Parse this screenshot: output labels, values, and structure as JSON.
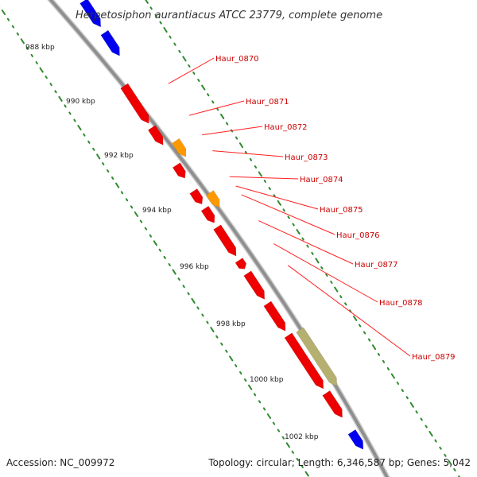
{
  "title": "Herpetosiphon aurantiacus ATCC 23779, complete genome",
  "accession_text": "Accession: NC_009972",
  "summary_text": "Topology: circular; Length: 6,346,587 bp; Genes: 5,042",
  "colors": {
    "background": "#ffffff",
    "backbone": "#8f8f8f",
    "tick": "#2e8b2e",
    "label_text": "#cc0000",
    "leader_line": "#ff2020",
    "cds": "#ee0000",
    "highlight_orange": "#ff9900",
    "highlight_khaki": "#b5b070",
    "neighbor_blue": "#0000ee"
  },
  "kbp_ticks": [
    {
      "label": "988 kbp",
      "pos": 988
    },
    {
      "label": "990 kbp",
      "pos": 990
    },
    {
      "label": "992 kbp",
      "pos": 992
    },
    {
      "label": "994 kbp",
      "pos": 994
    },
    {
      "label": "996 kbp",
      "pos": 996
    },
    {
      "label": "998 kbp",
      "pos": 998
    },
    {
      "label": "1000 kbp",
      "pos": 1000
    },
    {
      "label": "1002 kbp",
      "pos": 1002
    }
  ],
  "genes": [
    {
      "id": "upstream-1",
      "label": "",
      "color": "neighbor_blue",
      "start": 987.0,
      "end": 987.9,
      "lane": "outer"
    },
    {
      "id": "upstream-2",
      "label": "",
      "color": "neighbor_blue",
      "start": 988.1,
      "end": 988.9,
      "lane": "outer"
    },
    {
      "id": "Haur_0870",
      "label": "Haur_0870",
      "color": "cds",
      "start": 989.7,
      "end": 991.0,
      "lane": "inner"
    },
    {
      "id": "Haur_0871",
      "label": "Haur_0871",
      "color": "cds",
      "start": 991.15,
      "end": 991.75,
      "lane": "inner"
    },
    {
      "id": "Haur_0872",
      "label": "Haur_0872",
      "color": "highlight_orange",
      "start": 991.85,
      "end": 992.4,
      "lane": "outer"
    },
    {
      "id": "Haur_0873",
      "label": "Haur_0873",
      "color": "cds",
      "start": 992.45,
      "end": 992.9,
      "lane": "inner"
    },
    {
      "id": "Haur_0874",
      "label": "Haur_0874",
      "color": "cds",
      "start": 993.35,
      "end": 993.8,
      "lane": "inner"
    },
    {
      "id": "Haur_0875",
      "label": "Haur_0875",
      "color": "highlight_orange",
      "start": 993.65,
      "end": 994.15,
      "lane": "outer"
    },
    {
      "id": "Haur_0876",
      "label": "Haur_0876",
      "color": "cds",
      "start": 993.95,
      "end": 994.45,
      "lane": "inner"
    },
    {
      "id": "Haur_0877",
      "label": "Haur_0877",
      "color": "cds",
      "start": 994.6,
      "end": 995.6,
      "lane": "inner"
    },
    {
      "id": "Haur_0878",
      "label": "Haur_0878",
      "color": "cds",
      "start": 995.75,
      "end": 996.05,
      "lane": "inner"
    },
    {
      "id": "Haur_0879",
      "label": "Haur_0879",
      "color": "cds",
      "start": 996.2,
      "end": 997.1,
      "lane": "inner"
    },
    {
      "id": "Haur_0880",
      "label": "",
      "color": "cds",
      "start": 997.25,
      "end": 998.2,
      "lane": "inner"
    },
    {
      "id": "Haur_0881",
      "label": "",
      "color": "highlight_khaki",
      "start": 998.4,
      "end": 1000.35,
      "lane": "outer"
    },
    {
      "id": "Haur_0882",
      "label": "",
      "color": "cds",
      "start": 998.35,
      "end": 1000.2,
      "lane": "inner"
    },
    {
      "id": "Haur_0883",
      "label": "",
      "color": "cds",
      "start": 1000.35,
      "end": 1001.2,
      "lane": "inner"
    },
    {
      "id": "downstream-1",
      "label": "",
      "color": "neighbor_blue",
      "start": 1001.7,
      "end": 1002.3,
      "lane": "inner"
    }
  ]
}
